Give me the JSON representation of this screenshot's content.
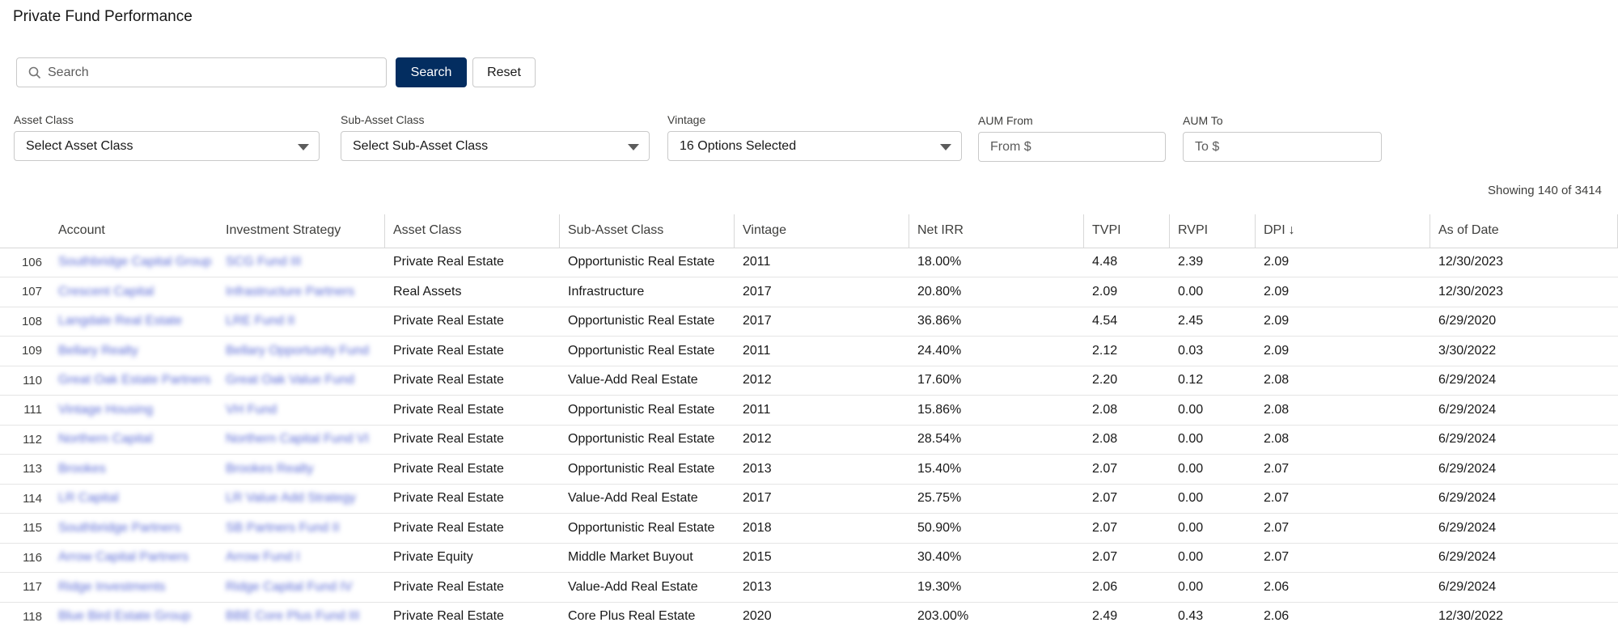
{
  "title": "Private Fund Performance",
  "search": {
    "placeholder": "Search",
    "button_label": "Search",
    "reset_label": "Reset"
  },
  "filters": {
    "asset_class": {
      "label": "Asset Class",
      "value": "Select Asset Class"
    },
    "sub_asset_class": {
      "label": "Sub-Asset Class",
      "value": "Select Sub-Asset Class"
    },
    "vintage": {
      "label": "Vintage",
      "value": "16 Options Selected"
    },
    "aum_from": {
      "label": "AUM From",
      "placeholder": "From $"
    },
    "aum_to": {
      "label": "AUM To",
      "placeholder": "To $"
    }
  },
  "showing": "Showing 140 of 3414",
  "table": {
    "columns": [
      "Account",
      "Investment Strategy",
      "Asset Class",
      "Sub-Asset Class",
      "Vintage",
      "Net IRR",
      "TVPI",
      "RVPI",
      "DPI",
      "As of Date"
    ],
    "sort_indicator": "↓",
    "rows": [
      {
        "num": "106",
        "account": "Southbridge Capital Group",
        "strategy": "SCG Fund III",
        "asset_class": "Private Real Estate",
        "sub_asset_class": "Opportunistic Real Estate",
        "vintage": "2011",
        "net_irr": "18.00%",
        "tvpi": "4.48",
        "rvpi": "2.39",
        "dpi": "2.09",
        "as_of": "12/30/2023"
      },
      {
        "num": "107",
        "account": "Crescent Capital",
        "strategy": "Infrastructure Partners",
        "asset_class": "Real Assets",
        "sub_asset_class": "Infrastructure",
        "vintage": "2017",
        "net_irr": "20.80%",
        "tvpi": "2.09",
        "rvpi": "0.00",
        "dpi": "2.09",
        "as_of": "12/30/2023"
      },
      {
        "num": "108",
        "account": "Langdale Real Estate",
        "strategy": "LRE Fund II",
        "asset_class": "Private Real Estate",
        "sub_asset_class": "Opportunistic Real Estate",
        "vintage": "2017",
        "net_irr": "36.86%",
        "tvpi": "4.54",
        "rvpi": "2.45",
        "dpi": "2.09",
        "as_of": "6/29/2020"
      },
      {
        "num": "109",
        "account": "Bellary Realty",
        "strategy": "Bellary Opportunity Fund",
        "asset_class": "Private Real Estate",
        "sub_asset_class": "Opportunistic Real Estate",
        "vintage": "2011",
        "net_irr": "24.40%",
        "tvpi": "2.12",
        "rvpi": "0.03",
        "dpi": "2.09",
        "as_of": "3/30/2022"
      },
      {
        "num": "110",
        "account": "Great Oak Estate Partners",
        "strategy": "Great Oak Value Fund",
        "asset_class": "Private Real Estate",
        "sub_asset_class": "Value-Add Real Estate",
        "vintage": "2012",
        "net_irr": "17.60%",
        "tvpi": "2.20",
        "rvpi": "0.12",
        "dpi": "2.08",
        "as_of": "6/29/2024"
      },
      {
        "num": "111",
        "account": "Vintage Housing",
        "strategy": "VH Fund",
        "asset_class": "Private Real Estate",
        "sub_asset_class": "Opportunistic Real Estate",
        "vintage": "2011",
        "net_irr": "15.86%",
        "tvpi": "2.08",
        "rvpi": "0.00",
        "dpi": "2.08",
        "as_of": "6/29/2024"
      },
      {
        "num": "112",
        "account": "Northern Capital",
        "strategy": "Northern Capital Fund VI",
        "asset_class": "Private Real Estate",
        "sub_asset_class": "Opportunistic Real Estate",
        "vintage": "2012",
        "net_irr": "28.54%",
        "tvpi": "2.08",
        "rvpi": "0.00",
        "dpi": "2.08",
        "as_of": "6/29/2024"
      },
      {
        "num": "113",
        "account": "Brookes",
        "strategy": "Brookes Realty",
        "asset_class": "Private Real Estate",
        "sub_asset_class": "Opportunistic Real Estate",
        "vintage": "2013",
        "net_irr": "15.40%",
        "tvpi": "2.07",
        "rvpi": "0.00",
        "dpi": "2.07",
        "as_of": "6/29/2024"
      },
      {
        "num": "114",
        "account": "LR Capital",
        "strategy": "LR Value Add Strategy",
        "asset_class": "Private Real Estate",
        "sub_asset_class": "Value-Add Real Estate",
        "vintage": "2017",
        "net_irr": "25.75%",
        "tvpi": "2.07",
        "rvpi": "0.00",
        "dpi": "2.07",
        "as_of": "6/29/2024"
      },
      {
        "num": "115",
        "account": "Southbridge Partners",
        "strategy": "SB Partners Fund II",
        "asset_class": "Private Real Estate",
        "sub_asset_class": "Opportunistic Real Estate",
        "vintage": "2018",
        "net_irr": "50.90%",
        "tvpi": "2.07",
        "rvpi": "0.00",
        "dpi": "2.07",
        "as_of": "6/29/2024"
      },
      {
        "num": "116",
        "account": "Arrow Capital Partners",
        "strategy": "Arrow Fund I",
        "asset_class": "Private Equity",
        "sub_asset_class": "Middle Market Buyout",
        "vintage": "2015",
        "net_irr": "30.40%",
        "tvpi": "2.07",
        "rvpi": "0.00",
        "dpi": "2.07",
        "as_of": "6/29/2024"
      },
      {
        "num": "117",
        "account": "Ridge Investments",
        "strategy": "Ridge Capital Fund IV",
        "asset_class": "Private Real Estate",
        "sub_asset_class": "Value-Add Real Estate",
        "vintage": "2013",
        "net_irr": "19.30%",
        "tvpi": "2.06",
        "rvpi": "0.00",
        "dpi": "2.06",
        "as_of": "6/29/2024"
      },
      {
        "num": "118",
        "account": "Blue Bird Estate Group",
        "strategy": "BBE Core Plus Fund III",
        "asset_class": "Private Real Estate",
        "sub_asset_class": "Core Plus Real Estate",
        "vintage": "2020",
        "net_irr": "203.00%",
        "tvpi": "2.49",
        "rvpi": "0.43",
        "dpi": "2.06",
        "as_of": "12/30/2022"
      }
    ]
  }
}
